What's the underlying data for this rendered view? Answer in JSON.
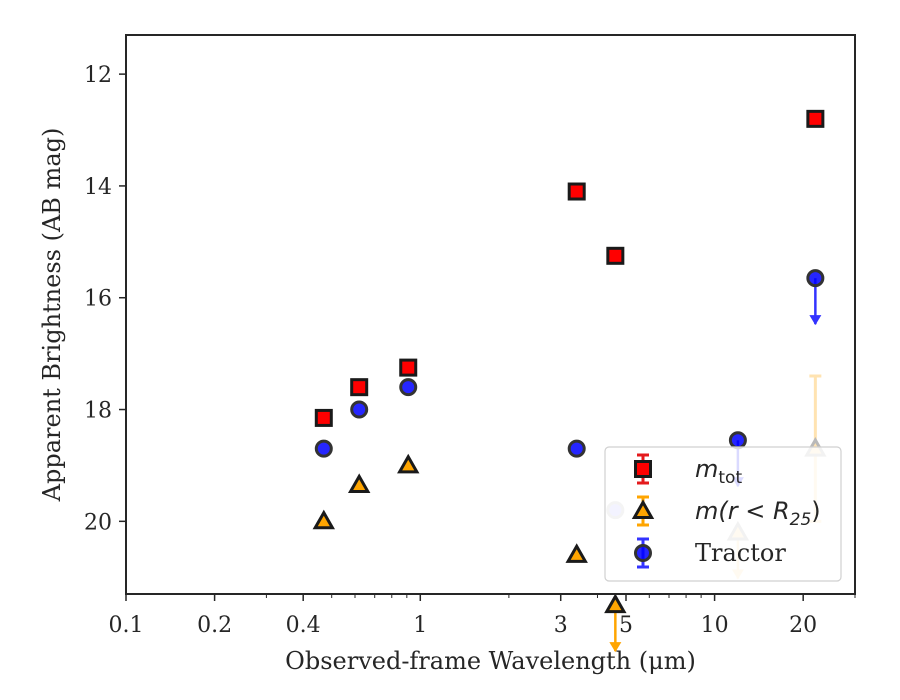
{
  "chart_data": {
    "type": "scatter",
    "title": "",
    "xlabel": "Observed-frame Wavelength (μm)",
    "ylabel": "Apparent Brightness (AB mag)",
    "xscale": "log",
    "xlim": [
      0.1,
      30
    ],
    "ylim": [
      21.3,
      11.3
    ],
    "y_inverted": true,
    "x_tick_labels": [
      "0.1",
      "0.2",
      "0.4",
      "1",
      "3",
      "5",
      "10",
      "20"
    ],
    "x_tick_values": [
      0.1,
      0.2,
      0.4,
      1,
      3,
      5,
      10,
      20
    ],
    "y_tick_labels": [
      "12",
      "14",
      "16",
      "18",
      "20"
    ],
    "y_tick_values": [
      12,
      14,
      16,
      18,
      20
    ],
    "grid": false,
    "legend_position": "bottom-right",
    "series": [
      {
        "name": "m_tot",
        "legend_main": "m",
        "legend_sub": "tot",
        "marker": "square",
        "color": "#ff0000",
        "edge_color": "#1a1a1a",
        "errorbar_color": "#e41a1c",
        "points": [
          {
            "x": 0.47,
            "y": 18.15
          },
          {
            "x": 0.62,
            "y": 17.6
          },
          {
            "x": 0.91,
            "y": 17.25
          },
          {
            "x": 3.4,
            "y": 14.1
          },
          {
            "x": 4.6,
            "y": 15.25
          },
          {
            "x": 22,
            "y": 12.8
          }
        ]
      },
      {
        "name": "m(r < R25)",
        "legend_main": "m(r < R",
        "legend_sub": "25",
        "legend_close": ")",
        "marker": "triangle",
        "color": "#ffa500",
        "edge_color": "#1a1a1a",
        "errorbar_color": "#ffa500",
        "points": [
          {
            "x": 0.47,
            "y": 20.0
          },
          {
            "x": 0.62,
            "y": 19.35
          },
          {
            "x": 0.91,
            "y": 19.0
          },
          {
            "x": 3.4,
            "y": 20.6
          },
          {
            "x": 4.6,
            "y": 21.5,
            "upper_limit": true
          },
          {
            "x": 12,
            "y": 20.2,
            "upper_limit": true,
            "faded": true
          },
          {
            "x": 22,
            "y": 18.7,
            "err_low": 1.3,
            "err_high": 1.3,
            "faded": true
          }
        ]
      },
      {
        "name": "Tractor",
        "marker": "circle",
        "color": "#0000ff",
        "edge_color": "#333333",
        "errorbar_color": "#3333ff",
        "points": [
          {
            "x": 0.47,
            "y": 18.7
          },
          {
            "x": 0.62,
            "y": 18.0
          },
          {
            "x": 0.91,
            "y": 17.6
          },
          {
            "x": 3.4,
            "y": 18.7
          },
          {
            "x": 4.6,
            "y": 19.8,
            "faded": true
          },
          {
            "x": 12,
            "y": 18.55,
            "upper_limit": true
          },
          {
            "x": 22,
            "y": 15.65,
            "upper_limit": true
          }
        ]
      }
    ]
  }
}
